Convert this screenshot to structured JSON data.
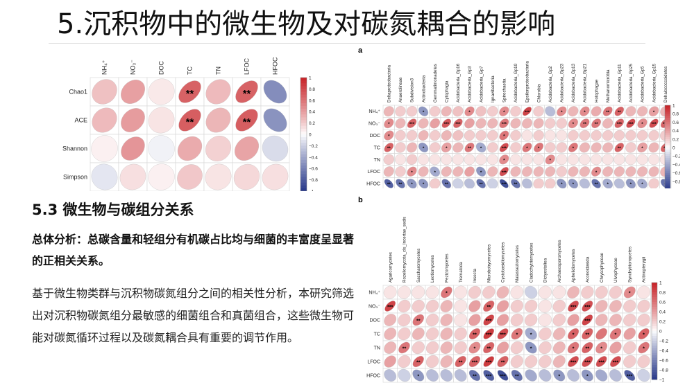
{
  "slide": {
    "title": "5.沉积物中的微生物及对碳氮耦合的影响",
    "section_heading": "5.3 微生物与碳组分关系",
    "summary": "总体分析：总碳含量和轻组分有机碳占比均与细菌的丰富度呈显著的正相关关系。",
    "body": "基于微生物类群与沉积物碳氮组分之间的相关性分析，本研究筛选出对沉积物碳氮组分最敏感的细菌组合和真菌组合，这些微生物可能对碳氮循环过程以及碳氮耦合具有重要的调节作用。"
  },
  "colors": {
    "positive": "#c8262b",
    "negative": "#2c3c8c",
    "neutral": "#ffffff"
  },
  "legend_ticks": [
    "1",
    "0.8",
    "0.6",
    "0.4",
    "0.2",
    "0",
    "−0.2",
    "−0.4",
    "−0.6",
    "−0.8",
    "−1"
  ],
  "chart_data": [
    {
      "type": "heatmap",
      "title": "",
      "columns": [
        "NH₄⁺",
        "NO₃⁻",
        "DOC",
        "TC",
        "TN",
        "LFOC",
        "HFOC"
      ],
      "rows": [
        "Chao1",
        "ACE",
        "Shannon",
        "Simpson"
      ],
      "values": [
        [
          0.25,
          0.4,
          0.08,
          0.7,
          0.28,
          0.7,
          -0.55
        ],
        [
          0.28,
          0.42,
          0.1,
          0.72,
          0.3,
          0.72,
          -0.52
        ],
        [
          0.05,
          0.45,
          -0.05,
          0.35,
          0.18,
          0.38,
          -0.15
        ],
        [
          -0.1,
          0.12,
          0.05,
          0.22,
          0.1,
          0.15,
          0.12
        ]
      ],
      "labels": [
        [
          "",
          "",
          "",
          "**",
          "",
          "**",
          ""
        ],
        [
          "",
          "",
          "",
          "**",
          "",
          "**",
          ""
        ],
        [
          "",
          "",
          "",
          "",
          "",
          "",
          ""
        ],
        [
          "",
          "",
          "",
          "",
          "",
          "",
          ""
        ]
      ]
    },
    {
      "type": "heatmap",
      "title": "a",
      "columns": [
        "Deltaproteobacteria",
        "Anaerolineae",
        "Subdivision3",
        "Actinobacteria",
        "Gemmatimonadetes",
        "Cytophagia",
        "Acidobacteria_Gp16",
        "Acidobacteria_Gp3",
        "Acidobacteria_Gp7",
        "Ignavibacteria",
        "Spirochaetia",
        "Acidobacteria_Gp10",
        "Epsilonproteobacteria",
        "Chlorobia",
        "Acidobacteria_Gp2",
        "Acidobacteria_Gp23",
        "Acidobacteria_Gp13",
        "Acidobacteria_Gp21",
        "Holophagae",
        "Methanomicrobia",
        "Acidobacteria_Gp11",
        "Acidobacteria_Gp25",
        "Acidobacteria_Gp5",
        "Acidobacteria_Gp15",
        "Dehalococcoidetes"
      ],
      "rows": [
        "NH₄⁺",
        "NO₃⁻",
        "DOC",
        "TC",
        "TN",
        "LFOC",
        "HFOC"
      ],
      "values": [
        [
          0.3,
          0.2,
          0.2,
          -0.5,
          0.2,
          0.3,
          0.25,
          0.5,
          0.25,
          0.2,
          0.5,
          0.2,
          0.85,
          0.2,
          -0.3,
          0.5,
          0.3,
          0.5,
          0.35,
          0.6,
          0.7,
          0.3,
          0.3,
          0.4,
          0.3
        ],
        [
          0.5,
          0.3,
          0.7,
          0.3,
          0.4,
          0.75,
          0.7,
          0.4,
          0.3,
          0.3,
          0.6,
          0.3,
          0.3,
          0.3,
          0.2,
          0.2,
          0.5,
          0.6,
          0.6,
          0.3,
          0.7,
          0.8,
          0.5,
          0.8,
          0.7
        ],
        [
          0.5,
          0.2,
          0.2,
          0.3,
          0.2,
          0.3,
          0.25,
          0.2,
          0.2,
          0.2,
          0.6,
          0.2,
          0.1,
          0.2,
          0.1,
          0.1,
          0.2,
          0.2,
          0.2,
          0.2,
          0.2,
          0.2,
          0.2,
          0.2,
          0.2
        ],
        [
          0.7,
          0.2,
          0.3,
          -0.5,
          0.2,
          0.4,
          0.3,
          0.6,
          -0.4,
          0.2,
          0.8,
          0.2,
          0.6,
          0.6,
          0.2,
          0.2,
          0.6,
          0.3,
          0.3,
          0.3,
          0.7,
          0.2,
          0.4,
          0.3,
          0.7
        ],
        [
          0.2,
          0.1,
          0.2,
          0.1,
          0.1,
          0.1,
          0.1,
          0.1,
          0.1,
          0.1,
          0.5,
          0.1,
          0.1,
          0.1,
          0.5,
          0.1,
          0.1,
          0.1,
          0.1,
          0.1,
          0.1,
          0.1,
          0.1,
          0.1,
          0.1
        ],
        [
          0.3,
          0.2,
          0.5,
          0.3,
          -0.4,
          0.3,
          0.3,
          0.4,
          -0.5,
          0.3,
          0.8,
          0.3,
          0.3,
          0.3,
          0.3,
          0.2,
          0.3,
          0.3,
          0.5,
          0.3,
          0.3,
          0.3,
          0.3,
          0.3,
          0.3
        ],
        [
          -0.8,
          -0.7,
          -0.5,
          -0.5,
          0.2,
          -0.7,
          -0.2,
          -0.3,
          -0.7,
          -0.2,
          -0.9,
          -0.7,
          -0.3,
          0.2,
          0.2,
          -0.5,
          -0.5,
          -0.3,
          -0.7,
          -0.4,
          -0.3,
          -0.5,
          -0.4,
          0.2,
          -0.7
        ]
      ],
      "labels": [
        [
          "",
          "",
          "",
          "*",
          "",
          "",
          "",
          "*",
          "",
          "",
          "*",
          "",
          "***",
          "",
          "",
          "*",
          "",
          "*",
          "",
          "**",
          "**",
          "",
          "",
          "*",
          ""
        ],
        [
          "*",
          "",
          "***",
          "",
          "",
          "***",
          "***",
          "",
          "",
          "",
          "***",
          "",
          "",
          "",
          "",
          "",
          "*",
          "**",
          "**",
          "",
          "***",
          "***",
          "*",
          "***",
          "***"
        ],
        [
          "*",
          "",
          "",
          "",
          "",
          "",
          "",
          "",
          "",
          "",
          "*",
          "",
          "",
          "",
          "",
          "",
          "",
          "",
          "",
          "",
          "",
          "",
          "",
          "",
          ""
        ],
        [
          "**",
          "",
          "",
          "*",
          "",
          "*",
          "",
          "**",
          "*",
          "",
          "***",
          "",
          "*",
          "*",
          "",
          "",
          "*",
          "",
          "",
          "",
          "**",
          "",
          "*",
          "",
          "**"
        ],
        [
          "",
          "",
          "",
          "",
          "",
          "",
          "",
          "",
          "",
          "",
          "*",
          "",
          "",
          "",
          "*",
          "",
          "",
          "",
          "",
          "",
          "",
          "",
          "",
          "",
          ""
        ],
        [
          "",
          "",
          "*",
          "",
          "*",
          "",
          "",
          "",
          "*",
          "",
          "***",
          "",
          "",
          "",
          "",
          "",
          "",
          "",
          "*",
          "",
          "",
          "",
          "",
          "",
          ""
        ],
        [
          "**",
          "**",
          "*",
          "*",
          "",
          "**",
          "",
          "",
          "**",
          "",
          "***",
          "**",
          "",
          "",
          "",
          "*",
          "*",
          "",
          "**",
          "*",
          "",
          "*",
          "*",
          "",
          "*"
        ]
      ]
    },
    {
      "type": "heatmap",
      "title": "b",
      "columns": [
        "Agaricomycetes",
        "Rozellomycota_cls_Incertae_sedis",
        "Saccharomycetes",
        "Leotiomycetes",
        "Pezizomycetes",
        "Trematoda",
        "Insecta",
        "Microbotryomycetes",
        "Cystobasidiomycetes",
        "Malasseziomycetes",
        "Cladochytriomycetes",
        "Dictyosteliea",
        "Archaeosporomycetes",
        "Aphelidiomycetes",
        "Aconoidasida",
        "Chrysophyceae",
        "Ulvophyceae",
        "Synchytriomycetes",
        "Actinopterygii"
      ],
      "rows": [
        "NH₄⁺",
        "NO₃⁻",
        "DOC",
        "TC",
        "TN",
        "LFOC",
        "HFOC"
      ],
      "values": [
        [
          0.1,
          0.1,
          0.1,
          0.1,
          0.6,
          0.1,
          0.2,
          0.2,
          0.3,
          0.1,
          -0.2,
          0.1,
          0.1,
          0.3,
          0.2,
          0.2,
          0.2,
          0.5,
          0.1
        ],
        [
          0.85,
          0.2,
          0.2,
          0.2,
          0.3,
          0.1,
          0.4,
          0.7,
          0.4,
          0.2,
          0.2,
          0.1,
          0.2,
          0.8,
          0.8,
          0.3,
          0.3,
          0.2,
          0.2
        ],
        [
          0.3,
          0.2,
          0.6,
          0.2,
          0.3,
          0.1,
          0.4,
          0.85,
          0.4,
          0.2,
          0.2,
          0.1,
          0.2,
          0.4,
          0.85,
          0.3,
          0.3,
          0.2,
          0.2
        ],
        [
          0.3,
          0.2,
          0.3,
          0.2,
          0.3,
          0.2,
          0.7,
          0.9,
          0.8,
          0.6,
          -0.4,
          0.2,
          0.3,
          0.7,
          0.7,
          0.6,
          0.6,
          0.4,
          0.7
        ],
        [
          0.3,
          0.6,
          0.2,
          0.2,
          0.3,
          0.2,
          0.5,
          0.7,
          0.4,
          0.2,
          -0.5,
          0.2,
          0.3,
          0.6,
          0.7,
          0.5,
          0.4,
          0.2,
          0.6
        ],
        [
          0.4,
          0.2,
          0.7,
          0.2,
          0.3,
          0.7,
          0.7,
          0.9,
          0.7,
          0.2,
          0.2,
          0.2,
          0.3,
          0.8,
          0.8,
          0.8,
          0.8,
          0.2,
          0.2
        ],
        [
          -0.3,
          -0.2,
          -0.5,
          -0.3,
          -0.3,
          -0.3,
          -0.7,
          -0.8,
          -0.9,
          -0.7,
          -0.4,
          -0.3,
          -0.5,
          -0.3,
          -0.5,
          -0.4,
          -0.3,
          -0.8,
          -0.2
        ]
      ],
      "labels": [
        [
          "",
          "",
          "",
          "",
          "*",
          "",
          "",
          "",
          "",
          "",
          "",
          "",
          "",
          "",
          "",
          "",
          "",
          "*",
          ""
        ],
        [
          "***",
          "",
          "",
          "",
          "",
          "",
          "",
          "**",
          "",
          "",
          "",
          "",
          "",
          "***",
          "***",
          "",
          "",
          "",
          ""
        ],
        [
          "",
          "",
          "**",
          "",
          "",
          "",
          "",
          "***",
          "",
          "",
          "",
          "",
          "",
          "",
          "***",
          "",
          "",
          "",
          ""
        ],
        [
          "",
          "",
          "",
          "",
          "",
          "",
          "**",
          "***",
          "***",
          "*",
          "*",
          "",
          "",
          "*",
          "**",
          "",
          "*",
          "",
          "*"
        ],
        [
          "",
          "**",
          "",
          "",
          "",
          "",
          "*",
          "**",
          "",
          "",
          "*",
          "",
          "",
          "*",
          "**",
          "*",
          "",
          "",
          "*"
        ],
        [
          "",
          "",
          "**",
          "",
          "",
          "**",
          "***",
          "***",
          "**",
          "",
          "",
          "",
          "",
          "***",
          "***",
          "***",
          "***",
          "",
          ""
        ],
        [
          "",
          "",
          "*",
          "",
          "",
          "",
          "**",
          "***",
          "***",
          "**",
          "",
          "",
          "*",
          "",
          "*",
          "",
          "",
          "***",
          ""
        ]
      ]
    }
  ]
}
